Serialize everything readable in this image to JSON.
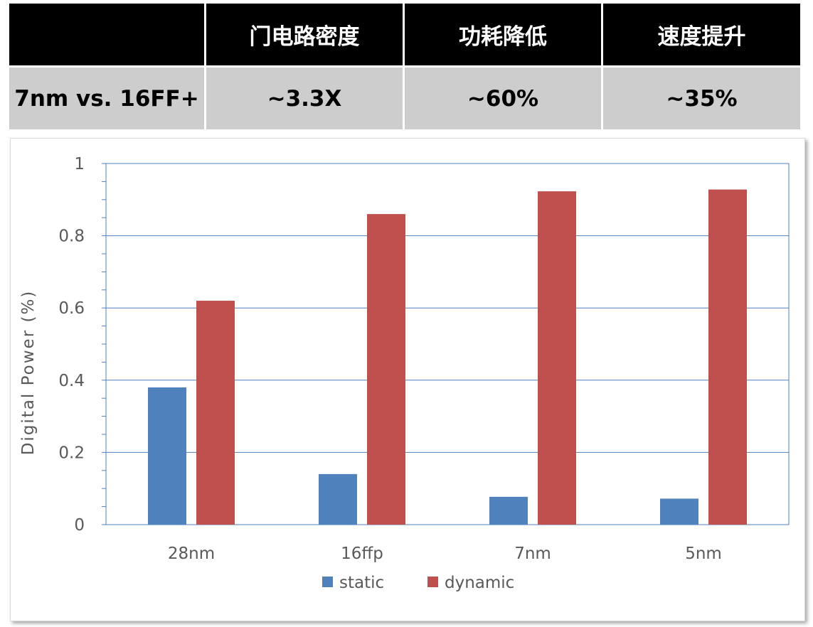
{
  "table": {
    "headers": [
      "",
      "门电路密度",
      "功耗降低",
      "速度提升"
    ],
    "row": [
      "7nm vs. 16FF+",
      "~3.3X",
      "~60%",
      "~35%"
    ]
  },
  "chart_data": {
    "type": "bar",
    "categories": [
      "28nm",
      "16ffp",
      "7nm",
      "5nm"
    ],
    "series": [
      {
        "name": "static",
        "values": [
          0.38,
          0.14,
          0.077,
          0.072
        ],
        "color": "#4f81bd"
      },
      {
        "name": "dynamic",
        "values": [
          0.62,
          0.86,
          0.923,
          0.928
        ],
        "color": "#c0504d"
      }
    ],
    "xlabel": "",
    "ylabel": "Digital Power (%)",
    "ylim": [
      0,
      1
    ],
    "yticks": [
      0,
      0.2,
      0.4,
      0.6,
      0.8,
      1
    ],
    "ytick_labels": [
      "0",
      "0.2",
      "0.4",
      "0.6",
      "0.8",
      "1"
    ],
    "grid": true,
    "legend_position": "bottom"
  }
}
